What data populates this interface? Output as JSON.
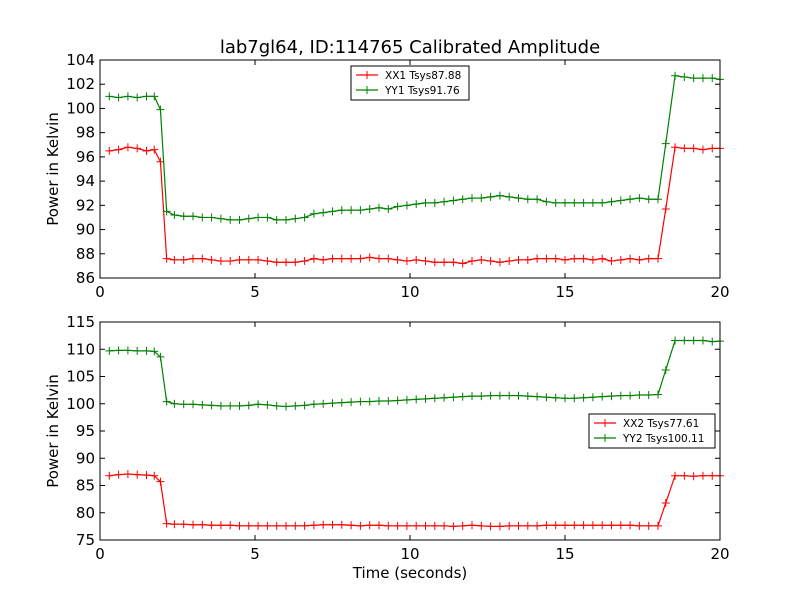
{
  "figure": {
    "title": "lab7gl64, ID:114765 Calibrated Amplitude",
    "xlabel": "Time (seconds)"
  },
  "chart_data": [
    {
      "type": "line",
      "title": "lab7gl64, ID:114765 Calibrated Amplitude",
      "xlabel": "",
      "ylabel": "Power in Kelvin",
      "xlim": [
        0,
        20
      ],
      "ylim": [
        86,
        104
      ],
      "xticks": [
        0,
        5,
        10,
        15,
        20
      ],
      "yticks": [
        86,
        88,
        90,
        92,
        94,
        96,
        98,
        100,
        102,
        104
      ],
      "legend_position": "top-center",
      "grid": false,
      "x": [
        0.3,
        0.6,
        0.9,
        1.2,
        1.5,
        1.75,
        1.95,
        2.15,
        2.4,
        2.7,
        3.0,
        3.3,
        3.6,
        3.9,
        4.2,
        4.5,
        4.8,
        5.1,
        5.4,
        5.7,
        6.0,
        6.3,
        6.6,
        6.9,
        7.2,
        7.5,
        7.8,
        8.1,
        8.4,
        8.7,
        9.0,
        9.3,
        9.6,
        9.9,
        10.2,
        10.5,
        10.8,
        11.1,
        11.4,
        11.7,
        12.0,
        12.3,
        12.6,
        12.9,
        13.2,
        13.5,
        13.8,
        14.1,
        14.4,
        14.7,
        15.0,
        15.3,
        15.6,
        15.9,
        16.2,
        16.5,
        16.8,
        17.1,
        17.4,
        17.7,
        18.0,
        18.25,
        18.55,
        18.85,
        19.15,
        19.45,
        19.75,
        20.0
      ],
      "series": [
        {
          "name": "XX1 Tsys87.88",
          "color": "#ff0000",
          "values": [
            96.5,
            96.6,
            96.8,
            96.7,
            96.5,
            96.6,
            95.6,
            87.6,
            87.5,
            87.5,
            87.6,
            87.6,
            87.5,
            87.4,
            87.4,
            87.5,
            87.5,
            87.5,
            87.4,
            87.3,
            87.3,
            87.3,
            87.4,
            87.6,
            87.5,
            87.6,
            87.6,
            87.6,
            87.6,
            87.7,
            87.6,
            87.6,
            87.5,
            87.4,
            87.5,
            87.4,
            87.3,
            87.3,
            87.3,
            87.2,
            87.4,
            87.5,
            87.4,
            87.3,
            87.4,
            87.5,
            87.5,
            87.6,
            87.6,
            87.6,
            87.5,
            87.6,
            87.6,
            87.5,
            87.6,
            87.4,
            87.5,
            87.6,
            87.5,
            87.6,
            87.6,
            91.7,
            96.8,
            96.7,
            96.7,
            96.6,
            96.7,
            96.7
          ]
        },
        {
          "name": "YY1 Tsys91.76",
          "color": "#008000",
          "values": [
            101.0,
            100.9,
            101.0,
            100.9,
            101.0,
            101.0,
            99.9,
            91.5,
            91.2,
            91.1,
            91.1,
            91.0,
            91.0,
            90.9,
            90.8,
            90.8,
            90.9,
            91.0,
            91.0,
            90.8,
            90.8,
            90.9,
            91.0,
            91.3,
            91.4,
            91.5,
            91.6,
            91.6,
            91.6,
            91.7,
            91.8,
            91.7,
            91.9,
            92.0,
            92.1,
            92.2,
            92.2,
            92.3,
            92.4,
            92.5,
            92.6,
            92.6,
            92.7,
            92.8,
            92.7,
            92.6,
            92.5,
            92.5,
            92.3,
            92.2,
            92.2,
            92.2,
            92.2,
            92.2,
            92.2,
            92.3,
            92.4,
            92.5,
            92.6,
            92.5,
            92.5,
            97.1,
            102.7,
            102.6,
            102.5,
            102.5,
            102.5,
            102.4
          ]
        }
      ]
    },
    {
      "type": "line",
      "title": "",
      "xlabel": "Time (seconds)",
      "ylabel": "Power in Kelvin",
      "xlim": [
        0,
        20
      ],
      "ylim": [
        75,
        115
      ],
      "xticks": [
        0,
        5,
        10,
        15,
        20
      ],
      "yticks": [
        75,
        80,
        85,
        90,
        95,
        100,
        105,
        110,
        115
      ],
      "legend_position": "center-right",
      "grid": false,
      "x": [
        0.3,
        0.6,
        0.9,
        1.2,
        1.5,
        1.75,
        1.95,
        2.15,
        2.4,
        2.7,
        3.0,
        3.3,
        3.6,
        3.9,
        4.2,
        4.5,
        4.8,
        5.1,
        5.4,
        5.7,
        6.0,
        6.3,
        6.6,
        6.9,
        7.2,
        7.5,
        7.8,
        8.1,
        8.4,
        8.7,
        9.0,
        9.3,
        9.6,
        9.9,
        10.2,
        10.5,
        10.8,
        11.1,
        11.4,
        11.7,
        12.0,
        12.3,
        12.6,
        12.9,
        13.2,
        13.5,
        13.8,
        14.1,
        14.4,
        14.7,
        15.0,
        15.3,
        15.6,
        15.9,
        16.2,
        16.5,
        16.8,
        17.1,
        17.4,
        17.7,
        18.0,
        18.25,
        18.55,
        18.85,
        19.15,
        19.45,
        19.75,
        20.0
      ],
      "series": [
        {
          "name": "XX2 Tsys77.61",
          "color": "#ff0000",
          "values": [
            86.8,
            87.0,
            87.1,
            87.0,
            86.9,
            86.8,
            85.7,
            78.0,
            77.9,
            77.9,
            77.8,
            77.8,
            77.7,
            77.7,
            77.7,
            77.6,
            77.6,
            77.6,
            77.6,
            77.6,
            77.6,
            77.6,
            77.6,
            77.7,
            77.8,
            77.8,
            77.8,
            77.7,
            77.6,
            77.7,
            77.7,
            77.6,
            77.6,
            77.6,
            77.6,
            77.6,
            77.6,
            77.6,
            77.5,
            77.6,
            77.7,
            77.6,
            77.5,
            77.5,
            77.6,
            77.6,
            77.6,
            77.6,
            77.7,
            77.7,
            77.7,
            77.7,
            77.7,
            77.7,
            77.7,
            77.7,
            77.7,
            77.7,
            77.6,
            77.6,
            77.6,
            81.8,
            86.8,
            86.8,
            86.7,
            86.8,
            86.8,
            86.8
          ]
        },
        {
          "name": "YY2 Tsys100.11",
          "color": "#008000",
          "values": [
            109.7,
            109.8,
            109.8,
            109.7,
            109.7,
            109.6,
            108.6,
            100.4,
            100.0,
            99.9,
            99.9,
            99.8,
            99.7,
            99.6,
            99.6,
            99.6,
            99.7,
            99.9,
            99.8,
            99.6,
            99.5,
            99.6,
            99.7,
            99.9,
            100.0,
            100.1,
            100.2,
            100.3,
            100.4,
            100.4,
            100.5,
            100.5,
            100.6,
            100.7,
            100.8,
            100.9,
            101.0,
            101.1,
            101.2,
            101.3,
            101.4,
            101.4,
            101.5,
            101.5,
            101.5,
            101.5,
            101.4,
            101.3,
            101.2,
            101.1,
            101.0,
            101.0,
            101.1,
            101.2,
            101.3,
            101.4,
            101.5,
            101.5,
            101.6,
            101.6,
            101.7,
            106.2,
            111.6,
            111.6,
            111.6,
            111.6,
            111.4,
            111.5
          ]
        }
      ]
    }
  ]
}
